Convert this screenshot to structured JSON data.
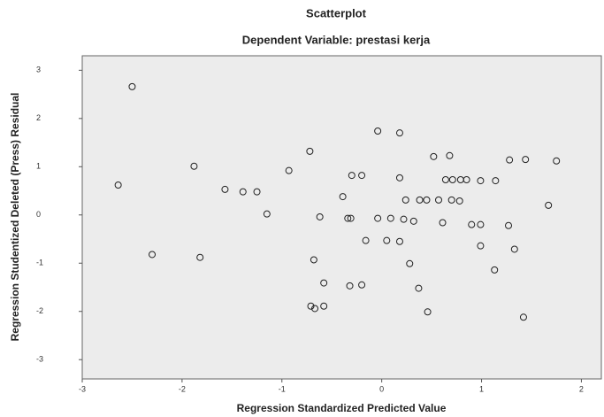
{
  "chart_data": {
    "type": "scatter",
    "title": "Scatterplot",
    "subtitle": "Dependent Variable: prestasi kerja",
    "x_label": "Regression Standardized Predicted Value",
    "y_label": "Regression Studentized Deleted (Press) Residual",
    "xlim": [
      -3,
      2.2
    ],
    "ylim": [
      -3.4,
      3.3
    ],
    "xticks": [
      -3,
      -2,
      -1,
      0,
      1,
      2
    ],
    "yticks": [
      -3,
      -2,
      -1,
      0,
      1,
      2,
      3
    ],
    "color": "#222222",
    "x": [
      -2.5,
      -2.64,
      -2.3,
      -1.88,
      -1.82,
      -1.57,
      -1.39,
      -1.25,
      -1.15,
      -0.93,
      -0.72,
      -0.68,
      -0.62,
      -0.58,
      -0.71,
      -0.67,
      -0.58,
      -0.39,
      -0.3,
      -0.2,
      -0.34,
      -0.31,
      -0.32,
      -0.2,
      -0.16,
      -0.04,
      -0.04,
      0.09,
      0.05,
      0.18,
      0.18,
      0.18,
      0.24,
      0.22,
      0.32,
      0.28,
      0.38,
      0.45,
      0.37,
      0.46,
      0.52,
      0.57,
      0.61,
      0.68,
      0.64,
      0.71,
      0.7,
      0.79,
      0.85,
      0.78,
      0.9,
      0.99,
      0.99,
      0.99,
      1.14,
      1.13,
      1.28,
      1.27,
      1.33,
      1.44,
      1.42,
      1.67,
      1.75
    ],
    "values": [
      2.66,
      0.62,
      -0.82,
      1.01,
      -0.88,
      0.53,
      0.48,
      0.48,
      0.02,
      0.92,
      1.32,
      -0.93,
      -0.04,
      -1.41,
      -1.89,
      -1.94,
      -1.89,
      0.38,
      0.82,
      0.82,
      -0.07,
      -0.07,
      -1.47,
      -1.45,
      -0.53,
      1.74,
      -0.07,
      -0.07,
      -0.53,
      1.7,
      0.77,
      -0.55,
      0.31,
      -0.09,
      -0.13,
      -1.01,
      0.31,
      0.31,
      -1.52,
      -2.01,
      1.21,
      0.31,
      -0.16,
      1.23,
      0.73,
      0.73,
      0.31,
      0.73,
      0.73,
      0.29,
      -0.2,
      -0.2,
      0.71,
      -0.64,
      0.71,
      -1.14,
      1.14,
      -0.22,
      -0.71,
      1.15,
      -2.12,
      0.2,
      1.12
    ]
  }
}
